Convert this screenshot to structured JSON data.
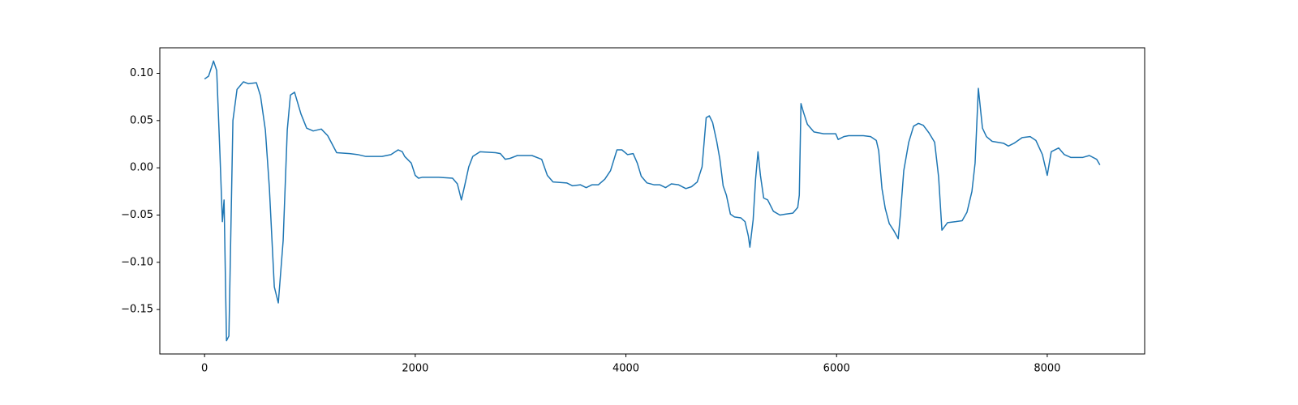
{
  "chart_data": {
    "type": "line",
    "x": [
      0,
      38,
      85,
      115,
      146,
      169,
      185,
      208,
      231,
      269,
      308,
      369,
      415,
      492,
      531,
      577,
      615,
      662,
      700,
      746,
      785,
      815,
      854,
      915,
      969,
      1031,
      1108,
      1169,
      1254,
      1377,
      1454,
      1531,
      1685,
      1769,
      1838,
      1877,
      1900,
      1962,
      2000,
      2031,
      2069,
      2223,
      2354,
      2400,
      2438,
      2469,
      2508,
      2546,
      2615,
      2762,
      2808,
      2854,
      2900,
      2969,
      3108,
      3200,
      3254,
      3308,
      3438,
      3492,
      3569,
      3623,
      3677,
      3738,
      3800,
      3854,
      3915,
      3962,
      4015,
      4069,
      4108,
      4146,
      4200,
      4269,
      4323,
      4377,
      4431,
      4500,
      4569,
      4623,
      4677,
      4723,
      4762,
      4792,
      4823,
      4862,
      4892,
      4923,
      4954,
      4992,
      5031,
      5092,
      5131,
      5162,
      5177,
      5208,
      5231,
      5254,
      5277,
      5308,
      5346,
      5400,
      5462,
      5515,
      5585,
      5631,
      5646,
      5662,
      5685,
      5723,
      5785,
      5877,
      5992,
      6015,
      6069,
      6115,
      6185,
      6254,
      6323,
      6377,
      6400,
      6431,
      6462,
      6500,
      6546,
      6585,
      6608,
      6638,
      6685,
      6731,
      6777,
      6823,
      6877,
      6931,
      6969,
      7000,
      7054,
      7131,
      7192,
      7238,
      7285,
      7315,
      7346,
      7385,
      7423,
      7477,
      7585,
      7631,
      7685,
      7762,
      7838,
      7892,
      7954,
      8000,
      8038,
      8108,
      8162,
      8223,
      8338,
      8400,
      8469,
      8500
    ],
    "series": [
      {
        "color": "#1f77b4",
        "values": [
          0.094,
          0.097,
          0.113,
          0.103,
          0.014,
          -0.057,
          -0.034,
          -0.183,
          -0.178,
          0.05,
          0.083,
          0.091,
          0.089,
          0.09,
          0.076,
          0.04,
          -0.021,
          -0.126,
          -0.143,
          -0.077,
          0.04,
          0.077,
          0.08,
          0.057,
          0.042,
          0.039,
          0.041,
          0.034,
          0.016,
          0.015,
          0.014,
          0.012,
          0.012,
          0.014,
          0.019,
          0.017,
          0.012,
          0.005,
          -0.008,
          -0.011,
          -0.01,
          -0.01,
          -0.011,
          -0.017,
          -0.034,
          -0.019,
          0.001,
          0.012,
          0.017,
          0.016,
          0.015,
          0.009,
          0.01,
          0.013,
          0.013,
          0.009,
          -0.008,
          -0.015,
          -0.016,
          -0.019,
          -0.018,
          -0.021,
          -0.018,
          -0.018,
          -0.012,
          -0.003,
          0.019,
          0.019,
          0.014,
          0.015,
          0.005,
          -0.009,
          -0.016,
          -0.018,
          -0.018,
          -0.021,
          -0.017,
          -0.018,
          -0.022,
          -0.02,
          -0.015,
          0.001,
          0.053,
          0.055,
          0.048,
          0.028,
          0.009,
          -0.019,
          -0.029,
          -0.049,
          -0.052,
          -0.053,
          -0.057,
          -0.072,
          -0.084,
          -0.055,
          -0.012,
          0.017,
          -0.008,
          -0.032,
          -0.034,
          -0.046,
          -0.05,
          -0.049,
          -0.048,
          -0.042,
          -0.029,
          0.068,
          0.059,
          0.046,
          0.038,
          0.036,
          0.036,
          0.03,
          0.033,
          0.034,
          0.034,
          0.034,
          0.033,
          0.029,
          0.018,
          -0.022,
          -0.043,
          -0.059,
          -0.067,
          -0.075,
          -0.047,
          -0.003,
          0.027,
          0.044,
          0.047,
          0.045,
          0.037,
          0.027,
          -0.01,
          -0.066,
          -0.058,
          -0.057,
          -0.056,
          -0.047,
          -0.025,
          0.005,
          0.084,
          0.042,
          0.033,
          0.028,
          0.026,
          0.023,
          0.026,
          0.032,
          0.033,
          0.029,
          0.014,
          -0.008,
          0.017,
          0.021,
          0.014,
          0.011,
          0.011,
          0.013,
          0.009,
          0.003
        ]
      }
    ],
    "xlim": [
      -425,
      8925
    ],
    "ylim": [
      -0.197,
      0.127
    ],
    "xticks": [
      0,
      2000,
      4000,
      6000,
      8000
    ],
    "yticks": [
      {
        "value": -0.15,
        "label": "−0.15"
      },
      {
        "value": -0.1,
        "label": "−0.10"
      },
      {
        "value": -0.05,
        "label": "−0.05"
      },
      {
        "value": 0,
        "label": "0.00"
      },
      {
        "value": 0.05,
        "label": "0.05"
      },
      {
        "value": 0.1,
        "label": "0.10"
      }
    ]
  }
}
